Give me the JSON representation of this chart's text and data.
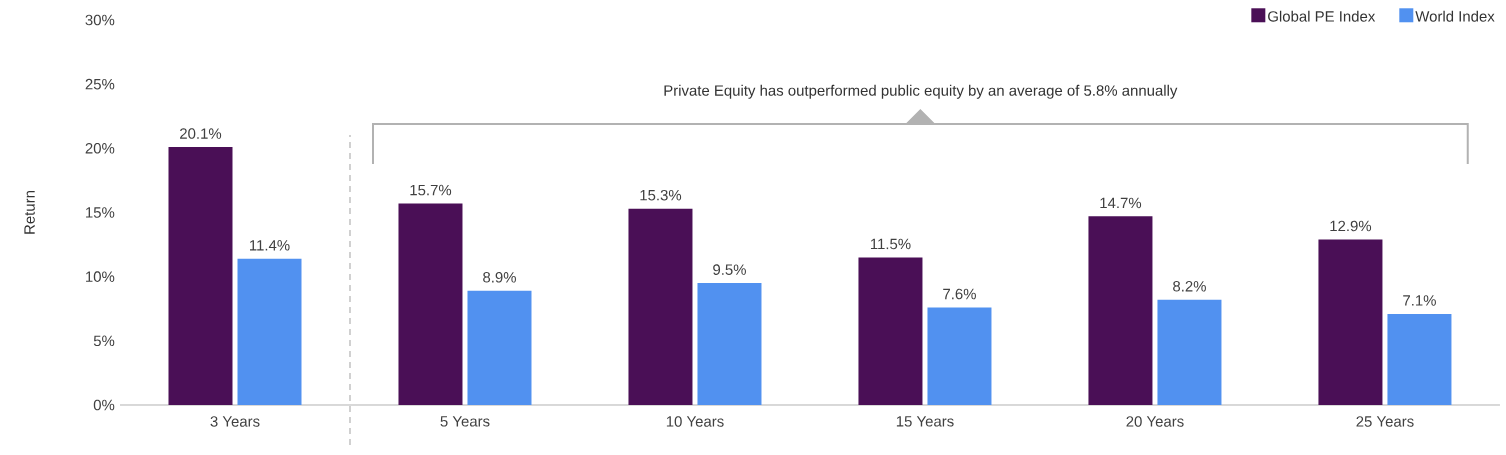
{
  "chart_data": {
    "type": "bar",
    "ylabel": "Return",
    "categories": [
      "3 Years",
      "5 Years",
      "10 Years",
      "15 Years",
      "20 Years",
      "25 Years"
    ],
    "series": [
      {
        "name": "Global PE Index",
        "color": "#4a0f56",
        "values": [
          20.1,
          15.7,
          15.3,
          11.5,
          14.7,
          12.9
        ],
        "value_labels": [
          "20.1%",
          "15.7%",
          "15.3%",
          "11.5%",
          "14.7%",
          "12.9%"
        ]
      },
      {
        "name": "World Index",
        "color": "#5191f0",
        "values": [
          11.4,
          8.9,
          9.5,
          7.6,
          8.2,
          7.1
        ],
        "value_labels": [
          "11.4%",
          "8.9%",
          "9.5%",
          "7.6%",
          "8.2%",
          "7.1%"
        ]
      }
    ],
    "ylim": [
      0,
      30
    ],
    "yticks": [
      {
        "value": 0,
        "label": "0%"
      },
      {
        "value": 5,
        "label": "5%"
      },
      {
        "value": 10,
        "label": "10%"
      },
      {
        "value": 15,
        "label": "15%"
      },
      {
        "value": 20,
        "label": "20%"
      },
      {
        "value": 25,
        "label": "25%"
      },
      {
        "value": 30,
        "label": "30%"
      }
    ],
    "annotations": [
      "Private Equity has outperformed public equity by an average of 5.8% annually"
    ],
    "legend": "top right",
    "grid": false
  }
}
